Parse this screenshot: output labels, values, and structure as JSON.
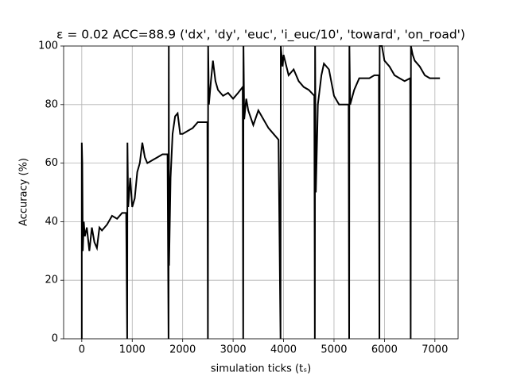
{
  "chart_data": {
    "type": "line",
    "title": "ε = 0.02 ACC=88.9 ('dx', 'dy', 'euc', 'i_euc/10', 'toward', 'on_road')",
    "xlabel": "simulation ticks (tₛ)",
    "ylabel": "Accuracy (%)",
    "x": [
      0,
      0,
      10,
      20,
      40,
      60,
      100,
      150,
      200,
      250,
      300,
      350,
      400,
      500,
      600,
      700,
      800,
      880,
      900,
      905,
      920,
      960,
      1000,
      1050,
      1100,
      1150,
      1200,
      1250,
      1300,
      1400,
      1500,
      1600,
      1700,
      1720,
      1725,
      1730,
      1760,
      1800,
      1850,
      1900,
      1950,
      2000,
      2100,
      2200,
      2300,
      2400,
      2490,
      2500,
      2505,
      2520,
      2560,
      2600,
      2650,
      2700,
      2800,
      2900,
      3000,
      3100,
      3190,
      3200,
      3205,
      3220,
      3260,
      3300,
      3400,
      3500,
      3600,
      3700,
      3800,
      3900,
      3940,
      3945,
      3980,
      4000,
      4100,
      4200,
      4300,
      4400,
      4500,
      4610,
      4620,
      4625,
      4640,
      4680,
      4750,
      4800,
      4900,
      5000,
      5100,
      5200,
      5290,
      5300,
      5305,
      5320,
      5400,
      5500,
      5600,
      5700,
      5800,
      5890,
      5900,
      5905,
      5950,
      6000,
      6100,
      6200,
      6300,
      6400,
      6510,
      6520,
      6525,
      6560,
      6600,
      6700,
      6800,
      6900,
      7000,
      7100
    ],
    "series": [
      {
        "name": "accuracy",
        "color": "#000000",
        "values": [
          0,
          67,
          60,
          30,
          40,
          35,
          38,
          30,
          38,
          33,
          31,
          38,
          37,
          39,
          42,
          41,
          43,
          43,
          0,
          67,
          45,
          55,
          45,
          48,
          57,
          60,
          67,
          62,
          60,
          61,
          62,
          63,
          63,
          0,
          100,
          25,
          55,
          70,
          76,
          77,
          70,
          70,
          71,
          72,
          74,
          74,
          74,
          0,
          100,
          80,
          88,
          95,
          88,
          85,
          83,
          84,
          82,
          84,
          86,
          0,
          100,
          75,
          82,
          78,
          73,
          78,
          75,
          72,
          70,
          68,
          0,
          100,
          93,
          97,
          90,
          92,
          88,
          86,
          85,
          83,
          0,
          100,
          50,
          80,
          90,
          94,
          92,
          83,
          80,
          80,
          80,
          0,
          100,
          80,
          85,
          89,
          89,
          89,
          90,
          90,
          0,
          100,
          100,
          95,
          93,
          90,
          89,
          88,
          89,
          0,
          100,
          97,
          95,
          93,
          90,
          89,
          89,
          89
        ]
      }
    ],
    "xlim": [
      -360,
      7460
    ],
    "ylim": [
      0,
      100
    ],
    "xticks": [
      0,
      1000,
      2000,
      3000,
      4000,
      5000,
      6000,
      7000
    ],
    "yticks": [
      0,
      20,
      40,
      60,
      80,
      100
    ],
    "grid": true
  }
}
